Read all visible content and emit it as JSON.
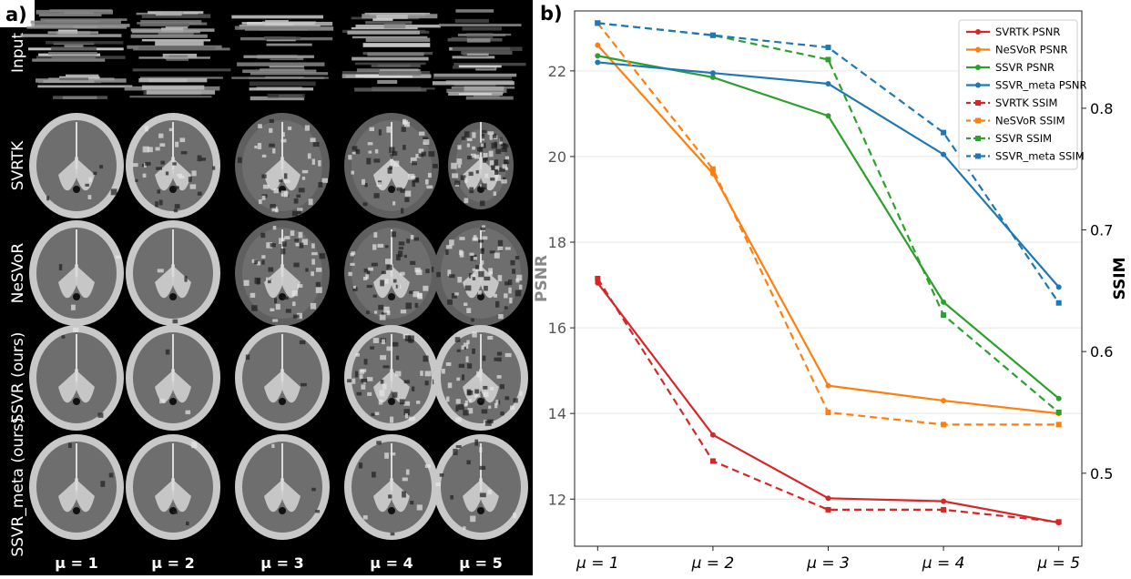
{
  "panel_a": {
    "label": "a)",
    "row_labels": [
      "Input",
      "SVRTK",
      "NeSVoR",
      "SSVR (ours)",
      "SSVR_meta (ours)"
    ],
    "col_labels": [
      "μ = 1",
      "μ = 2",
      "μ = 3",
      "μ = 4",
      "μ = 5"
    ]
  },
  "panel_b": {
    "label": "b)"
  },
  "chart_data": {
    "type": "line",
    "title": "",
    "x": [
      1,
      2,
      3,
      4,
      5
    ],
    "x_tick_labels": [
      "μ = 1",
      "μ = 2",
      "μ = 3",
      "μ = 4",
      "μ = 5"
    ],
    "xlabel": "",
    "ylabel_left": "PSNR",
    "ylabel_right": "SSIM",
    "ylim_left": [
      10.9,
      23.4
    ],
    "ylim_right": [
      0.44,
      0.88
    ],
    "yticks_left": [
      12,
      14,
      16,
      18,
      20,
      22
    ],
    "yticks_right": [
      0.5,
      0.6,
      0.7,
      0.8
    ],
    "grid": true,
    "legend_position": "top-right",
    "series": [
      {
        "name": "SVRTK PSNR",
        "axis": "left",
        "style": "solid",
        "color": "#d62728",
        "values": [
          17.05,
          13.5,
          12.02,
          11.95,
          11.45
        ]
      },
      {
        "name": "NeSVoR PSNR",
        "axis": "left",
        "style": "solid",
        "color": "#ff7f0e",
        "values": [
          22.6,
          19.6,
          14.65,
          14.3,
          14.0
        ]
      },
      {
        "name": "SSVR PSNR",
        "axis": "left",
        "style": "solid",
        "color": "#2ca02c",
        "values": [
          22.35,
          21.85,
          20.95,
          16.6,
          14.35
        ]
      },
      {
        "name": "SSVR_meta PSNR",
        "axis": "left",
        "style": "solid",
        "color": "#1f77b4",
        "values": [
          22.2,
          21.95,
          21.7,
          20.05,
          16.95
        ]
      },
      {
        "name": "SVRTK SSIM",
        "axis": "right",
        "style": "dashed",
        "color": "#d62728",
        "values": [
          0.66,
          0.51,
          0.47,
          0.47,
          0.46
        ]
      },
      {
        "name": "NeSVoR SSIM",
        "axis": "right",
        "style": "dashed",
        "color": "#ff7f0e",
        "values": [
          0.87,
          0.75,
          0.55,
          0.54,
          0.54
        ]
      },
      {
        "name": "SSVR SSIM",
        "axis": "right",
        "style": "dashed",
        "color": "#2ca02c",
        "values": [
          0.87,
          0.86,
          0.84,
          0.63,
          0.55
        ]
      },
      {
        "name": "SSVR_meta SSIM",
        "axis": "right",
        "style": "dashed",
        "color": "#1f77b4",
        "values": [
          0.87,
          0.86,
          0.85,
          0.78,
          0.64
        ]
      }
    ]
  }
}
